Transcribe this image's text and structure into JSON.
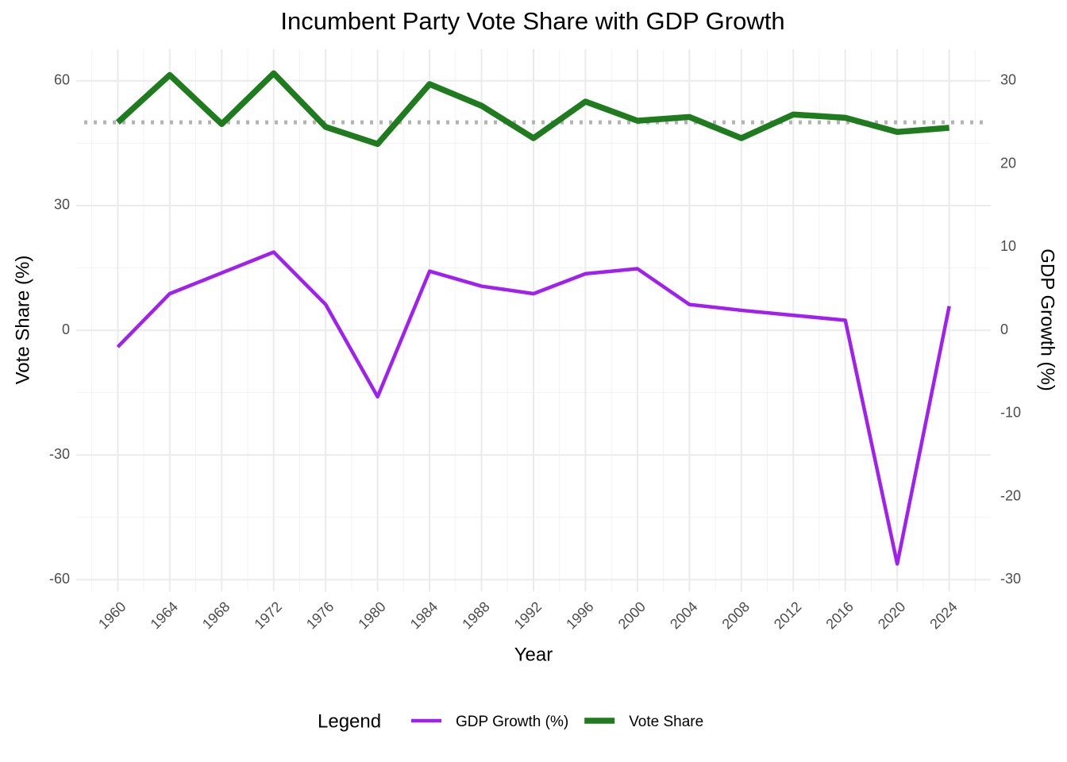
{
  "chart_data": {
    "type": "line",
    "title": "Incumbent Party Vote Share with GDP Growth",
    "x_label": "Year",
    "y_label": "Vote Share (%)",
    "y2_label": "GDP Growth (%)",
    "legend_title": "Legend",
    "legend_position": "bottom",
    "grid": true,
    "x": [
      1960,
      1964,
      1968,
      1972,
      1976,
      1980,
      1984,
      1988,
      1992,
      1996,
      2000,
      2004,
      2008,
      2012,
      2016,
      2020,
      2024
    ],
    "series": [
      {
        "name": "GDP Growth (%)",
        "color": "#a020f0",
        "axis": "y2",
        "values": [
          -2.0,
          4.4,
          6.9,
          9.4,
          3.1,
          -8.0,
          7.1,
          5.3,
          4.4,
          6.8,
          7.4,
          3.1,
          2.4,
          1.8,
          1.2,
          -28.1,
          2.9
        ]
      },
      {
        "name": "Vote Share",
        "color": "#1e7b1e",
        "values": [
          50.0,
          61.4,
          49.6,
          61.8,
          48.9,
          44.8,
          59.2,
          54.0,
          46.2,
          55.0,
          50.4,
          51.3,
          46.2,
          51.9,
          51.1,
          47.7,
          48.7
        ]
      }
    ],
    "reference_line": {
      "value": 50,
      "color": "#b3b3b3"
    },
    "xlim": [
      1956.8,
      2027.2
    ],
    "xticks": [
      1960,
      1964,
      1968,
      1972,
      1976,
      1980,
      1984,
      1988,
      1992,
      1996,
      2000,
      2004,
      2008,
      2012,
      2016,
      2020,
      2024
    ],
    "ylim": [
      -62.8,
      67.6
    ],
    "yticks": [
      -60,
      -30,
      0,
      30,
      60
    ],
    "y2lim": [
      -31.4,
      33.8
    ],
    "y2ticks": [
      -30,
      -20,
      -10,
      0,
      10,
      20,
      30
    ]
  }
}
